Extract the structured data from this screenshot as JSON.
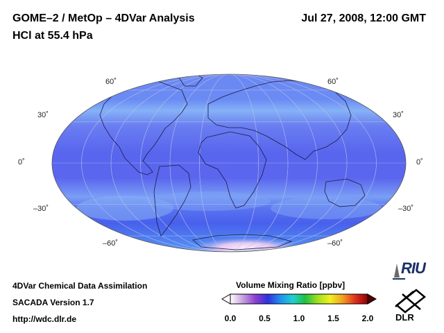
{
  "header": {
    "title_line1": "GOME–2 / MetOp – 4DVar Analysis",
    "title_line2": "HCl at 55.4 hPa",
    "datetime": "Jul 27, 2008, 12:00 GMT"
  },
  "map": {
    "projection": "mollweide",
    "lat_labels_left": [
      "60˚",
      "30˚",
      "0˚",
      "–30˚",
      "–60˚"
    ],
    "lat_labels_right": [
      "60˚",
      "30˚",
      "0˚",
      "–30˚",
      "–60˚"
    ],
    "lat_values": [
      60,
      30,
      0,
      -30,
      -60
    ],
    "background_color": "#5a6cf0",
    "band_color": "#7fa3f5",
    "polar_color": "#f4e8f6"
  },
  "colorbar": {
    "title": "Volume Mixing Ratio [ppbv]",
    "ticks": [
      "0.0",
      "0.5",
      "1.0",
      "1.5",
      "2.0"
    ],
    "tick_values": [
      0.0,
      0.5,
      1.0,
      1.5,
      2.0
    ],
    "range": [
      0.0,
      2.0
    ],
    "colors": [
      "#ffffff",
      "#c8a0e0",
      "#8a40d0",
      "#3030e0",
      "#2090f0",
      "#20d0d0",
      "#20c040",
      "#a0e020",
      "#f0f020",
      "#f0a020",
      "#e03020",
      "#900000"
    ]
  },
  "footer": {
    "line1": "4DVar Chemical Data Assimilation",
    "line2": "SACADA Version 1.7",
    "line3": "http://wdc.dlr.de"
  },
  "logos": {
    "riu_text": "RIU",
    "dlr_text": "DLR"
  }
}
